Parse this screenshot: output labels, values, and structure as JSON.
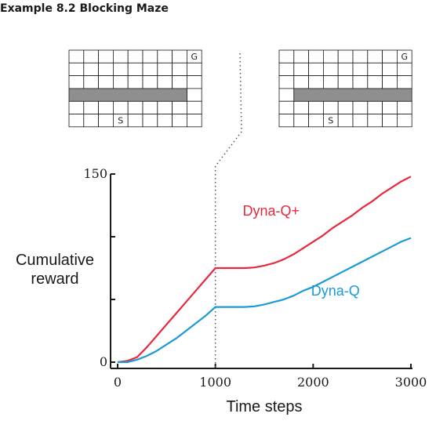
{
  "heading": "Example 8.2 Blocking Maze",
  "mazes": [
    {
      "cols": 9,
      "rows": 6,
      "wall": {
        "row": 3,
        "col_start": 0,
        "col_end": 7
      },
      "goal": {
        "row": 0,
        "col": 8,
        "label": "G"
      },
      "start": {
        "row": 5,
        "col": 3,
        "label": "S"
      }
    },
    {
      "cols": 9,
      "rows": 6,
      "wall": {
        "row": 3,
        "col_start": 1,
        "col_end": 8
      },
      "goal": {
        "row": 0,
        "col": 8,
        "label": "G"
      },
      "start": {
        "row": 5,
        "col": 3,
        "label": "S"
      }
    }
  ],
  "chart_data": {
    "type": "line",
    "xlabel": "Time steps",
    "ylabel": [
      "Cumulative",
      "reward"
    ],
    "xlim": [
      0,
      3000
    ],
    "ylim": [
      0,
      150
    ],
    "x_tick_labels": [
      {
        "value": 0,
        "label": "0"
      },
      {
        "value": 1000,
        "label": "1000"
      },
      {
        "value": 2000,
        "label": "2000"
      },
      {
        "value": 3000,
        "label": "3000"
      }
    ],
    "y_ticks": [
      0,
      50,
      100,
      150
    ],
    "y_tick_labels": [
      {
        "value": 0,
        "label": "0"
      },
      {
        "value": 150,
        "label": "150"
      }
    ],
    "event_line_x": 1000,
    "series": [
      {
        "name": "Dyna-Q+",
        "color": "#e8283c",
        "points": [
          [
            0,
            0
          ],
          [
            100,
            1
          ],
          [
            200,
            4
          ],
          [
            300,
            12
          ],
          [
            400,
            21
          ],
          [
            500,
            30
          ],
          [
            600,
            39
          ],
          [
            700,
            48
          ],
          [
            800,
            57
          ],
          [
            900,
            66
          ],
          [
            1000,
            75
          ],
          [
            1100,
            75
          ],
          [
            1200,
            75
          ],
          [
            1300,
            75
          ],
          [
            1400,
            75.5
          ],
          [
            1500,
            77
          ],
          [
            1600,
            79
          ],
          [
            1700,
            82
          ],
          [
            1800,
            86
          ],
          [
            1900,
            91
          ],
          [
            2000,
            96
          ],
          [
            2100,
            101
          ],
          [
            2200,
            107
          ],
          [
            2300,
            112
          ],
          [
            2400,
            117
          ],
          [
            2500,
            123
          ],
          [
            2600,
            128
          ],
          [
            2700,
            134
          ],
          [
            2800,
            139
          ],
          [
            2900,
            144
          ],
          [
            3000,
            148
          ]
        ]
      },
      {
        "name": "Dyna-Q",
        "color": "#1a9ad6",
        "points": [
          [
            0,
            0
          ],
          [
            100,
            0
          ],
          [
            200,
            2
          ],
          [
            300,
            5
          ],
          [
            400,
            9
          ],
          [
            500,
            14
          ],
          [
            600,
            19
          ],
          [
            700,
            25
          ],
          [
            800,
            31
          ],
          [
            900,
            37
          ],
          [
            1000,
            44
          ],
          [
            1100,
            44
          ],
          [
            1200,
            44
          ],
          [
            1300,
            44
          ],
          [
            1400,
            44.5
          ],
          [
            1500,
            46
          ],
          [
            1600,
            48
          ],
          [
            1700,
            50
          ],
          [
            1800,
            53
          ],
          [
            1900,
            57
          ],
          [
            2000,
            60
          ],
          [
            2100,
            64
          ],
          [
            2200,
            68
          ],
          [
            2300,
            72
          ],
          [
            2400,
            76
          ],
          [
            2500,
            80
          ],
          [
            2600,
            84
          ],
          [
            2700,
            88
          ],
          [
            2800,
            92
          ],
          [
            2900,
            96
          ],
          [
            3000,
            99
          ]
        ]
      }
    ],
    "series_label_positions": [
      {
        "series": "Dyna-Q+",
        "x": 1600,
        "y": 117
      },
      {
        "series": "Dyna-Q",
        "x": 2300,
        "y": 53
      }
    ]
  }
}
